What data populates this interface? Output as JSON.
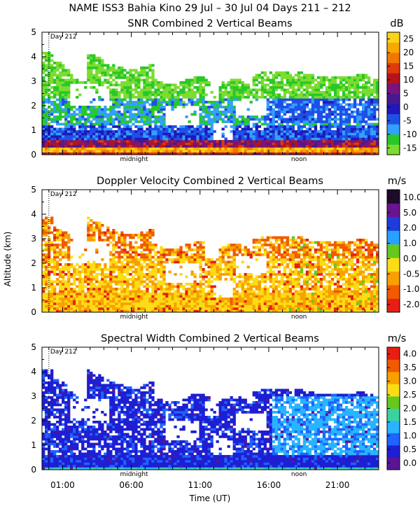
{
  "figure": {
    "title": "NAME ISS3 Bahia Kino  29 Jul – 30 Jul 04 Days 211 – 212",
    "xlabel": "Time (UT)",
    "ylabel": "Altitude (km)",
    "time_ticks": [
      "01:00",
      "06:00",
      "11:00",
      "16:00",
      "21:00"
    ],
    "midnight_label": "midnight",
    "noon_label": "noon",
    "day_label": "Day 212",
    "y_ticks": [
      "0",
      "1",
      "2",
      "3",
      "4",
      "5"
    ]
  },
  "chart_data": [
    {
      "type": "heatmap",
      "title": "SNR Combined 2 Vertical Beams",
      "unit": "dB",
      "ylim": [
        0,
        5
      ],
      "colorbar_ticks": [
        "25",
        "20",
        "15",
        "10",
        "5",
        "0",
        "-5",
        "-10",
        "-15"
      ],
      "colorbar_range": [
        -17.5,
        27.5
      ],
      "colors": [
        "#7cdc30",
        "#28c828",
        "#32a0ff",
        "#1e50e6",
        "#2018b8",
        "#481890",
        "#78147a",
        "#b4141e",
        "#e03a0a",
        "#f07800",
        "#f8a800",
        "#fcd21a"
      ],
      "features": {
        "surface_layer_top_km": 0.5,
        "cloud_top_km_start": 3.8,
        "cloud_top_km_mid": 4.0,
        "cloud_top_km_end": 2.9
      }
    },
    {
      "type": "heatmap",
      "title": "Doppler Velocity Combined 2 Vertical Beams",
      "unit": "m/s",
      "ylim": [
        0,
        5
      ],
      "colorbar_ticks": [
        "10.0",
        "5.0",
        "2.0",
        "1.0",
        "0.0",
        "-0.5",
        "-1.0",
        "-2.0"
      ],
      "colors": [
        "#e81e14",
        "#f05a00",
        "#f8a000",
        "#fcdc14",
        "#64c81e",
        "#28a0ff",
        "#1e3cdc",
        "#6a1490",
        "#1e0a2a"
      ]
    },
    {
      "type": "heatmap",
      "title": "Spectral Width Combined 2 Vertical Beams",
      "unit": "m/s",
      "ylim": [
        0,
        5
      ],
      "colorbar_ticks": [
        "4.0",
        "3.5",
        "3.0",
        "2.5",
        "2.0",
        "1.5",
        "1.0",
        "0.5",
        "0.0"
      ],
      "colors": [
        "#5a1496",
        "#1e1ed2",
        "#1e64ff",
        "#28b4ff",
        "#3cd2a0",
        "#64c81e",
        "#fcdc14",
        "#f8a000",
        "#f05a00",
        "#e81e14"
      ]
    }
  ]
}
